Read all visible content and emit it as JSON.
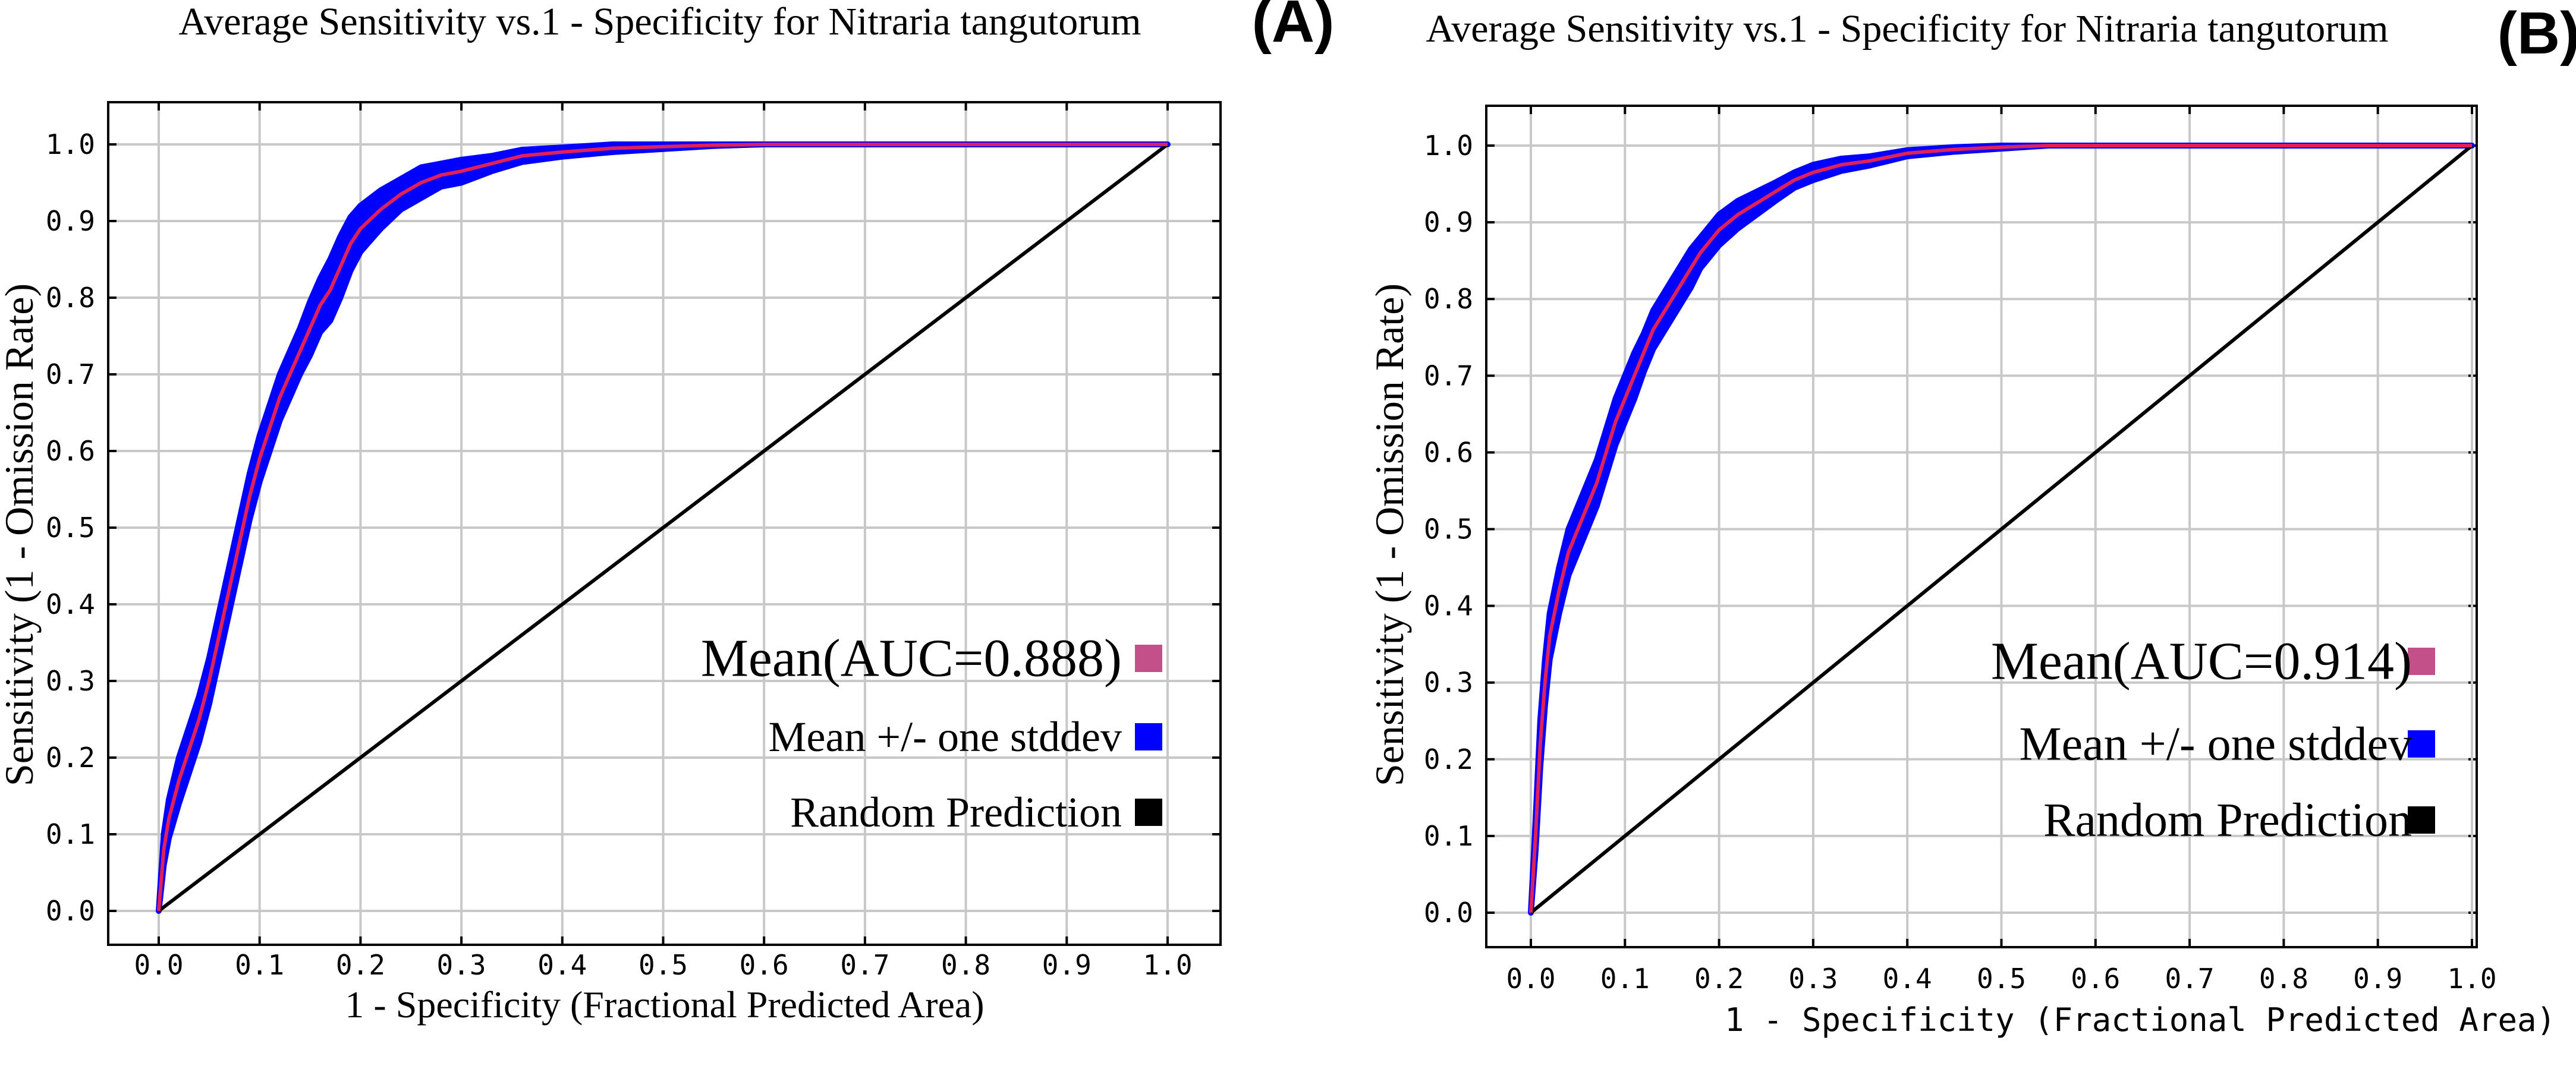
{
  "chart_data": [
    {
      "type": "line",
      "panel_label": "(A)",
      "title": "Average Sensitivity vs.1 - Specificity for Nitraria tangutorum",
      "xlabel": "1 - Specificity (Fractional Predicted Area)",
      "ylabel": "Sensitivity (1 - Omission Rate)",
      "xlim": [
        0,
        1
      ],
      "ylim": [
        0,
        1
      ],
      "grid": true,
      "x_ticks": [
        "0.0",
        "0.1",
        "0.2",
        "0.3",
        "0.4",
        "0.5",
        "0.6",
        "0.7",
        "0.8",
        "0.9",
        "1.0"
      ],
      "y_ticks": [
        "0.0",
        "0.1",
        "0.2",
        "0.3",
        "0.4",
        "0.5",
        "0.6",
        "0.7",
        "0.8",
        "0.9",
        "1.0"
      ],
      "legend": {
        "position": "bottom-right",
        "entries": [
          {
            "label": "Mean(AUC=0.888)",
            "color": "#c4508a"
          },
          {
            "label": "Mean +/- one stddev",
            "color": "#0000ff"
          },
          {
            "label": "Random Prediction",
            "color": "#000000"
          }
        ]
      },
      "series": [
        {
          "name": "Mean(AUC=0.888)",
          "color": "#e0205a",
          "x": [
            0,
            0.005,
            0.01,
            0.02,
            0.03,
            0.04,
            0.05,
            0.06,
            0.07,
            0.08,
            0.09,
            0.1,
            0.11,
            0.12,
            0.13,
            0.14,
            0.15,
            0.16,
            0.17,
            0.18,
            0.19,
            0.2,
            0.22,
            0.24,
            0.26,
            0.28,
            0.3,
            0.33,
            0.36,
            0.4,
            0.45,
            0.5,
            0.55,
            0.6,
            0.7,
            0.8,
            0.9,
            1.0
          ],
          "y": [
            0,
            0.08,
            0.12,
            0.17,
            0.21,
            0.25,
            0.3,
            0.36,
            0.42,
            0.48,
            0.54,
            0.59,
            0.63,
            0.67,
            0.7,
            0.73,
            0.76,
            0.79,
            0.81,
            0.84,
            0.87,
            0.89,
            0.915,
            0.935,
            0.95,
            0.96,
            0.965,
            0.975,
            0.985,
            0.99,
            0.995,
            0.997,
            0.999,
            1.0,
            1.0,
            1.0,
            1.0,
            1.0
          ]
        },
        {
          "name": "Mean +/- one stddev",
          "color": "#0000ff",
          "band_halfwidth": [
            0,
            0.02,
            0.025,
            0.03,
            0.03,
            0.03,
            0.03,
            0.03,
            0.03,
            0.03,
            0.03,
            0.03,
            0.03,
            0.03,
            0.03,
            0.03,
            0.035,
            0.035,
            0.04,
            0.04,
            0.035,
            0.03,
            0.025,
            0.02,
            0.02,
            0.015,
            0.015,
            0.01,
            0.008,
            0.006,
            0.005,
            0.003,
            0.001,
            0,
            0,
            0,
            0,
            0
          ]
        },
        {
          "name": "Random Prediction",
          "color": "#000000",
          "x": [
            0,
            1
          ],
          "y": [
            0,
            1
          ]
        }
      ]
    },
    {
      "type": "line",
      "panel_label": "(B)",
      "title": "Average Sensitivity vs.1 - Specificity for Nitraria tangutorum",
      "xlabel": "1 - Specificity (Fractional Predicted Area)",
      "ylabel": "Sensitivity (1 - Omission Rate)",
      "xlim": [
        0,
        1
      ],
      "ylim": [
        0,
        1
      ],
      "grid": true,
      "x_ticks": [
        "0.0",
        "0.1",
        "0.2",
        "0.3",
        "0.4",
        "0.5",
        "0.6",
        "0.7",
        "0.8",
        "0.9",
        "1.0"
      ],
      "y_ticks": [
        "0.0",
        "0.1",
        "0.2",
        "0.3",
        "0.4",
        "0.5",
        "0.6",
        "0.7",
        "0.8",
        "0.9",
        "1.0"
      ],
      "legend": {
        "position": "bottom-right",
        "entries": [
          {
            "label": "Mean(AUC=0.914)",
            "color": "#c4508a"
          },
          {
            "label": "Mean +/- one stddev",
            "color": "#0000ff"
          },
          {
            "label": "Random Prediction",
            "color": "#000000"
          }
        ]
      },
      "series": [
        {
          "name": "Mean(AUC=0.914)",
          "color": "#e0205a",
          "x": [
            0,
            0.005,
            0.01,
            0.015,
            0.02,
            0.03,
            0.04,
            0.05,
            0.06,
            0.07,
            0.08,
            0.09,
            0.1,
            0.11,
            0.12,
            0.13,
            0.14,
            0.15,
            0.16,
            0.17,
            0.18,
            0.2,
            0.22,
            0.24,
            0.26,
            0.28,
            0.3,
            0.33,
            0.36,
            0.4,
            0.45,
            0.5,
            0.55,
            0.6,
            0.7,
            0.8,
            0.9,
            1.0
          ],
          "y": [
            0,
            0.1,
            0.22,
            0.3,
            0.36,
            0.42,
            0.47,
            0.5,
            0.53,
            0.56,
            0.6,
            0.64,
            0.67,
            0.7,
            0.73,
            0.76,
            0.78,
            0.8,
            0.82,
            0.84,
            0.86,
            0.89,
            0.91,
            0.925,
            0.94,
            0.955,
            0.965,
            0.975,
            0.98,
            0.99,
            0.995,
            0.998,
            1.0,
            1.0,
            1.0,
            1.0,
            1.0,
            1.0
          ]
        },
        {
          "name": "Mean +/- one stddev",
          "color": "#0000ff",
          "band_halfwidth": [
            0,
            0.02,
            0.03,
            0.03,
            0.03,
            0.03,
            0.03,
            0.03,
            0.03,
            0.03,
            0.03,
            0.03,
            0.03,
            0.03,
            0.025,
            0.025,
            0.025,
            0.025,
            0.025,
            0.025,
            0.02,
            0.02,
            0.018,
            0.015,
            0.012,
            0.01,
            0.01,
            0.008,
            0.006,
            0.004,
            0.003,
            0.002,
            0,
            0,
            0,
            0,
            0,
            0
          ]
        },
        {
          "name": "Random Prediction",
          "color": "#000000",
          "x": [
            0,
            1
          ],
          "y": [
            0,
            1
          ]
        }
      ]
    }
  ]
}
